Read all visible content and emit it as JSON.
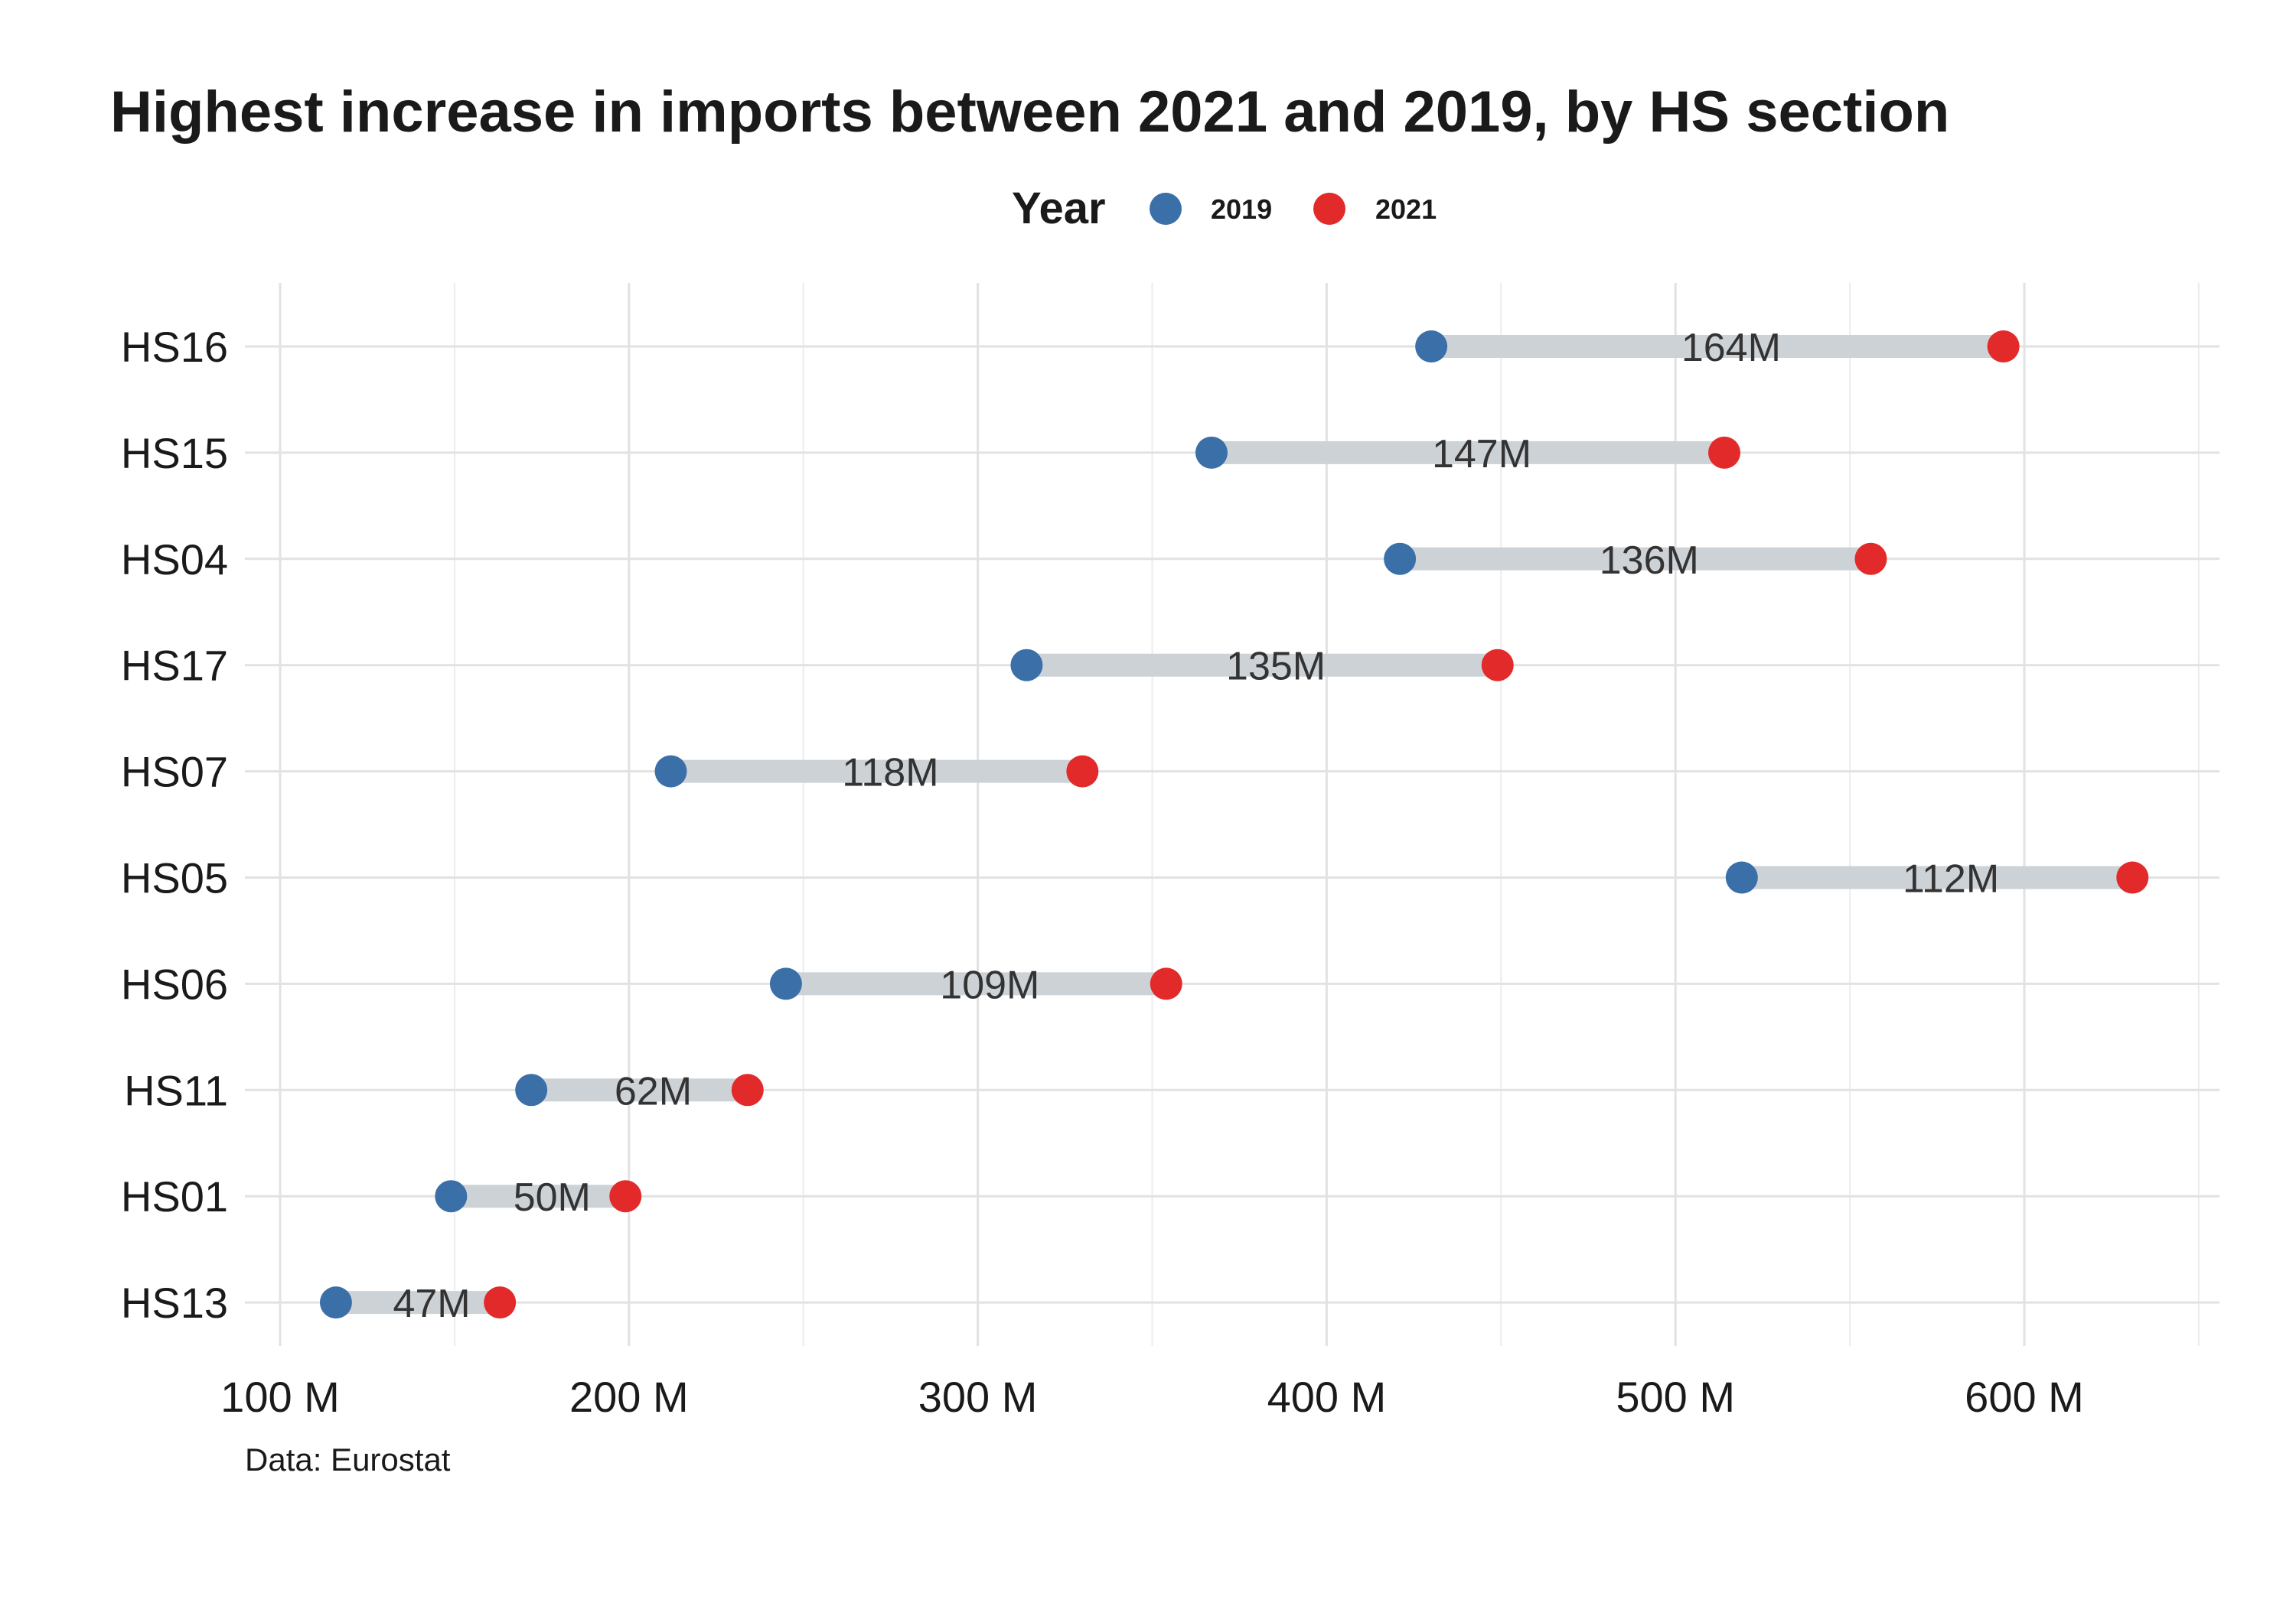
{
  "chart_data": {
    "type": "dumbbell",
    "title": "Highest increase in imports between 2021 and 2019, by HS section",
    "legend": {
      "title": "Year",
      "position": "top",
      "entries": [
        {
          "name": "2019",
          "color": "#3a6fa8"
        },
        {
          "name": "2021",
          "color": "#e32a2a"
        }
      ]
    },
    "caption": "Data: Eurostat",
    "xlim": [
      90,
      655
    ],
    "xticks": [
      {
        "value": 100,
        "label": "100 M"
      },
      {
        "value": 200,
        "label": "200 M"
      },
      {
        "value": 300,
        "label": "300 M"
      },
      {
        "value": 400,
        "label": "400 M"
      },
      {
        "value": 500,
        "label": "500 M"
      },
      {
        "value": 600,
        "label": "600 M"
      }
    ],
    "grid": true,
    "rows": [
      {
        "category": "HS16",
        "v2019": 430,
        "v2021": 594,
        "label": "164M"
      },
      {
        "category": "HS15",
        "v2019": 367,
        "v2021": 514,
        "label": "147M"
      },
      {
        "category": "HS04",
        "v2019": 421,
        "v2021": 556,
        "label": "136M"
      },
      {
        "category": "HS17",
        "v2019": 314,
        "v2021": 449,
        "label": "135M"
      },
      {
        "category": "HS07",
        "v2019": 212,
        "v2021": 330,
        "label": "118M"
      },
      {
        "category": "HS05",
        "v2019": 519,
        "v2021": 631,
        "label": "112M"
      },
      {
        "category": "HS06",
        "v2019": 245,
        "v2021": 354,
        "label": "109M"
      },
      {
        "category": "HS11",
        "v2019": 172,
        "v2021": 234,
        "label": "62M"
      },
      {
        "category": "HS01",
        "v2019": 149,
        "v2021": 199,
        "label": "50M"
      },
      {
        "category": "HS13",
        "v2019": 116,
        "v2021": 163,
        "label": "47M"
      }
    ]
  }
}
